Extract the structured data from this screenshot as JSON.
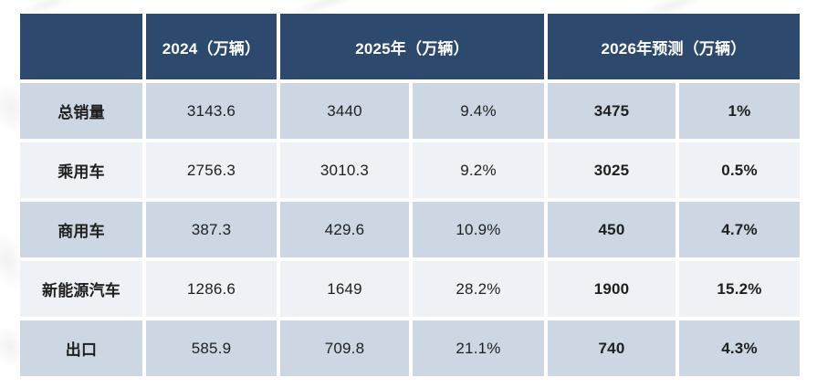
{
  "chart_data": {
    "type": "table",
    "title": "",
    "unit": "万辆",
    "header": {
      "corner": "",
      "group_2024": "2024（万辆）",
      "group_2025": "2025年（万辆）",
      "group_2026": "2026年预测（万辆）"
    },
    "columns_semantics": [
      "category",
      "2024 sales",
      "2025 sales",
      "2025 YoY growth",
      "2026 forecast sales",
      "2026 YoY growth"
    ],
    "rows": [
      {
        "label": "总销量",
        "y2024": "3143.6",
        "y2025": "3440",
        "growth2025": "9.4%",
        "y2026": "3475",
        "growth2026": "1%"
      },
      {
        "label": "乘用车",
        "y2024": "2756.3",
        "y2025": "3010.3",
        "growth2025": "9.2%",
        "y2026": "3025",
        "growth2026": "0.5%"
      },
      {
        "label": "商用车",
        "y2024": "387.3",
        "y2025": "429.6",
        "growth2025": "10.9%",
        "y2026": "450",
        "growth2026": "4.7%"
      },
      {
        "label": "新能源汽车",
        "y2024": "1286.6",
        "y2025": "1649",
        "growth2025": "28.2%",
        "y2026": "1900",
        "growth2026": "15.2%"
      },
      {
        "label": "出口",
        "y2024": "585.9",
        "y2025": "709.8",
        "growth2025": "21.1%",
        "y2026": "740",
        "growth2026": "4.3%"
      }
    ]
  },
  "colors": {
    "header_bg": "#2d4a6e",
    "header_text": "#ffffff",
    "row_odd_bg": "#ccd7e3",
    "row_even_bg": "#eef1f6",
    "body_text": "#1f1f1f",
    "page_bg": "#ffffff"
  }
}
